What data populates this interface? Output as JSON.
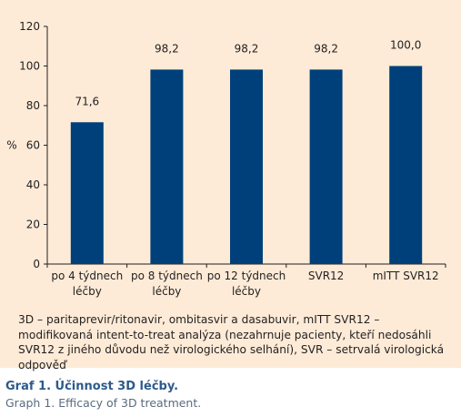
{
  "chart_data": {
    "type": "bar",
    "categories": [
      [
        "po 4 týdnech",
        "léčby"
      ],
      [
        "po 8 týdnech",
        "léčby"
      ],
      [
        "po 12 týdnech",
        "léčby"
      ],
      [
        "SVR12"
      ],
      [
        "mITT SVR12"
      ]
    ],
    "values": [
      71.6,
      98.2,
      98.2,
      98.2,
      100.0
    ],
    "value_labels": [
      "71,6",
      "98,2",
      "98,2",
      "98,2",
      "100,0"
    ],
    "ylabel": "%",
    "ylim": [
      0,
      120
    ],
    "yticks": [
      0,
      20,
      40,
      60,
      80,
      100,
      120
    ],
    "grid": false,
    "bar_color": "#00407a"
  },
  "footnote": "3D – paritaprevir/ritonavir, ombitasvir a dasabuvir, mITT SVR12 – modifikovaná intent-to-treat analýza (nezahrnuje pacienty, kteří nedosáhli SVR12 z jiného důvodu než virologického selhání), SVR – setrvalá virologická odpověď",
  "caption": {
    "title": "Graf 1. Účinnost 3D léčby.",
    "subtitle": "Graph 1. Efficacy of 3D treatment."
  },
  "colors": {
    "panel_background": "#fdebd7",
    "caption_title": "#2d5a8c",
    "caption_subtitle": "#5a6b80"
  }
}
